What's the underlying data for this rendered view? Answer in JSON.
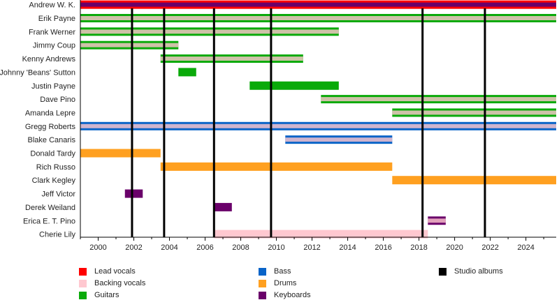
{
  "chart_data": {
    "type": "timeline",
    "xlim": [
      1999,
      2025.7
    ],
    "x_ticks": [
      2000,
      2002,
      2004,
      2006,
      2008,
      2010,
      2012,
      2014,
      2016,
      2018,
      2020,
      2022,
      2024
    ],
    "colors": {
      "Lead vocals": "#ff0000",
      "Backing vocals": "#ffc8d0",
      "Guitars": "#0aaa0a",
      "Bass": "#0a64c8",
      "Drums": "#ffa020",
      "Keyboards": "#6a006a",
      "Studio albums": "#000000"
    },
    "members": [
      {
        "name": "Andrew W. K.",
        "start": 1999,
        "end": 2025.7,
        "role": "Lead vocals",
        "second_role": "Keyboards"
      },
      {
        "name": "Erik Payne",
        "start": 1999,
        "end": 2025.7,
        "role": "Guitars",
        "second_role": "Backing vocals"
      },
      {
        "name": "Frank Werner",
        "start": 1999,
        "end": 2013.5,
        "role": "Guitars",
        "second_role": "Backing vocals"
      },
      {
        "name": "Jimmy Coup",
        "start": 1999,
        "end": 2004.5,
        "role": "Guitars",
        "second_role": "Backing vocals"
      },
      {
        "name": "Kenny Andrews",
        "start": 2003.5,
        "end": 2011.5,
        "role": "Guitars",
        "second_role": "Backing vocals"
      },
      {
        "name": "Johnny 'Beans' Sutton",
        "start": 2004.5,
        "end": 2005.5,
        "role": "Guitars"
      },
      {
        "name": "Justin Payne",
        "start": 2008.5,
        "end": 2013.5,
        "role": "Guitars"
      },
      {
        "name": "Dave Pino",
        "start": 2012.5,
        "end": 2025.7,
        "role": "Guitars",
        "second_role": "Backing vocals"
      },
      {
        "name": "Amanda Lepre",
        "start": 2016.5,
        "end": 2025.7,
        "role": "Guitars",
        "second_role": "Backing vocals"
      },
      {
        "name": "Gregg Roberts",
        "start": 1999,
        "end": 2025.7,
        "role": "Bass",
        "second_role": "Backing vocals"
      },
      {
        "name": "Blake Canaris",
        "start": 2010.5,
        "end": 2016.5,
        "role": "Bass",
        "second_role": "Backing vocals"
      },
      {
        "name": "Donald Tardy",
        "start": 1999,
        "end": 2003.5,
        "role": "Drums"
      },
      {
        "name": "Rich Russo",
        "start": 2003.5,
        "end": 2016.5,
        "role": "Drums"
      },
      {
        "name": "Clark Kegley",
        "start": 2016.5,
        "end": 2025.7,
        "role": "Drums"
      },
      {
        "name": "Jeff Victor",
        "start": 2001.5,
        "end": 2002.5,
        "role": "Keyboards"
      },
      {
        "name": "Derek Weiland",
        "start": 2006.5,
        "end": 2007.5,
        "role": "Keyboards"
      },
      {
        "name": "Erica E. T. Pino",
        "start": 2018.5,
        "end": 2019.5,
        "role": "Keyboards",
        "second_role": "Backing vocals"
      },
      {
        "name": "Cherie Lily",
        "start": 2006.5,
        "end": 2018.5,
        "role": "Backing vocals"
      }
    ],
    "studio_albums": [
      2001.9,
      2003.7,
      2006.5,
      2009.7,
      2018.2,
      2021.7
    ],
    "legend": [
      [
        "Lead vocals",
        "Backing vocals",
        "Guitars"
      ],
      [
        "Bass",
        "Drums",
        "Keyboards"
      ],
      [
        "Studio albums"
      ]
    ],
    "legend_placement": "bottom"
  }
}
